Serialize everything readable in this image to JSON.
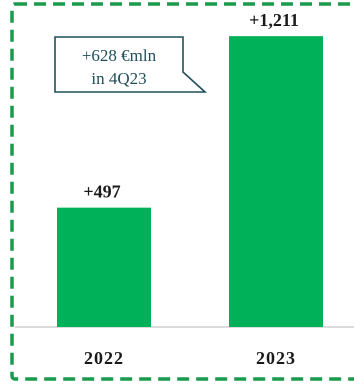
{
  "chart_data": {
    "type": "bar",
    "categories": [
      "2022",
      "2023"
    ],
    "values": [
      497,
      1211
    ],
    "value_labels": [
      "+497",
      "+1,211"
    ],
    "ylim": [
      0,
      1320
    ],
    "grid": false,
    "bar_color": "#00b15a",
    "frame_color": "#1a9a4c",
    "callout": {
      "line1": "+628 €mln",
      "line2": "in 4Q23",
      "border_color": "#1f4f5a",
      "text_color": "#1f4f5a"
    }
  }
}
